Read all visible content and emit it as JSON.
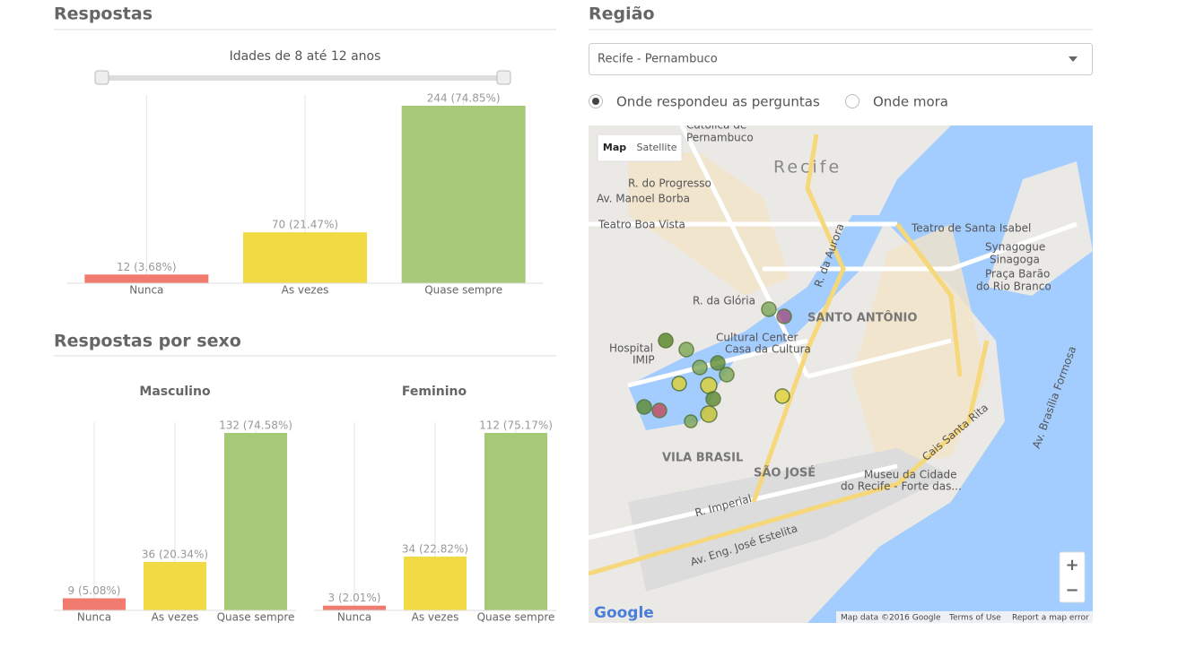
{
  "left": {
    "title": "Respostas",
    "slider_label": "Idades de 8 até 12 anos",
    "chart": {
      "type": "bar",
      "categories": [
        "Nunca",
        "As vezes",
        "Quase sempre"
      ],
      "values": [
        12,
        70,
        244
      ],
      "value_labels": [
        "12 (3.68%)",
        "70 (21.47%)",
        "244 (74.85%)"
      ],
      "colors": [
        "#f07b6e",
        "#f2da44",
        "#a6c978"
      ]
    },
    "sex_title": "Respostas por sexo",
    "sex_charts": [
      {
        "type": "bar",
        "title": "Masculino",
        "categories": [
          "Nunca",
          "As vezes",
          "Quase sempre"
        ],
        "values": [
          9,
          36,
          132
        ],
        "value_labels": [
          "9 (5.08%)",
          "36 (20.34%)",
          "132 (74.58%)"
        ],
        "colors": [
          "#f07b6e",
          "#f2da44",
          "#a6c978"
        ]
      },
      {
        "type": "bar",
        "title": "Feminino",
        "categories": [
          "Nunca",
          "As vezes",
          "Quase sempre"
        ],
        "values": [
          3,
          34,
          112
        ],
        "value_labels": [
          "3 (2.01%)",
          "34 (22.82%)",
          "112 (75.17%)"
        ],
        "colors": [
          "#f07b6e",
          "#f2da44",
          "#a6c978"
        ]
      }
    ]
  },
  "right": {
    "title": "Região",
    "select": "Recife - Pernambuco",
    "radios": [
      "Onde respondeu as perguntas",
      "Onde mora"
    ],
    "map": {
      "buttons": [
        "Map",
        "Satellite"
      ],
      "labels": [
        "Recife",
        "Católica de",
        "Pernambuco",
        "R. do Progresso",
        "Av. Manoel Borba",
        "Teatro Boa Vista",
        "R. da Glória",
        "SANTO ANTÔNIO",
        "Cultural Center",
        "Casa da Cultura",
        "Hospital",
        "IMIP",
        "Teatro de Santa Isabel",
        "Synagogue",
        "Sinagoga",
        "Praça Barão",
        "do Rio Branco",
        "VILA BRASIL",
        "SÃO JOSÉ",
        "Museu da Cidade",
        "do Recife - Forte das...",
        "R. Imperial",
        "Av. Eng. José Estelita",
        "Cais Santa Rita",
        "R. da Aurora",
        "Av. Brasília Formosa"
      ],
      "zoom": [
        "+",
        "−"
      ],
      "footer": [
        "Map data ©2016 Google",
        "Terms of Use",
        "Report a map error"
      ],
      "logo": "Google"
    }
  }
}
